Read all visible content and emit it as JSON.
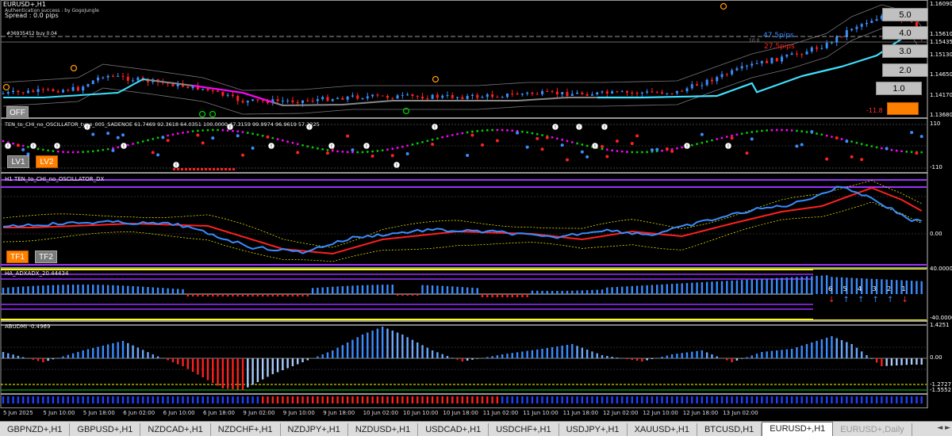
{
  "header": {
    "symbol": "EURUSD+,H1",
    "auth": "Authentication success : by GogoJungle",
    "spread": "Spread : 0.0 pips",
    "order": "#36935452 buy 0.04"
  },
  "main_panel": {
    "pips_blue": "47.5pips",
    "pips_red": "27.5pips",
    "level_small": "10.0",
    "pl_text": "-11.8",
    "right_values": [
      "1.16090",
      "1.15610",
      "1.15435",
      "1.15130",
      "1.14650",
      "1.14170",
      "1.13680"
    ],
    "off_label": "OFF"
  },
  "buttons": {
    "b50": "5.0",
    "b40": "4.0",
    "b30": "3.0",
    "b20": "2.0",
    "b10": "1.0"
  },
  "osc_panel": {
    "title": "TEN_to_CHI_no_OSCILLATOR_type_005_SADENOE 61.7469 92.3618 64.0351 100.0000 47.3159 99.9974 96.9619 57.2225",
    "top_value": "110",
    "bottom_value": "-110",
    "lv1": "LV1",
    "lv2": "LV2",
    "marker_glyph": "!"
  },
  "dx_panel": {
    "title": "H1 TEN_to_CHI_no_OSCILLATOR_DX",
    "zero": "0.00",
    "tf1": "TF1",
    "tf2": "TF2"
  },
  "adx_panel": {
    "title": "HA_ADXADX_20.44434",
    "top_value": "40.0000",
    "bottom_value": "-40.0000",
    "tf_numbers": [
      "6",
      "5",
      "4",
      "3",
      "2",
      "1"
    ],
    "arrows": [
      {
        "glyph": "↓",
        "color": "#ff3030"
      },
      {
        "glyph": "↑",
        "color": "#3a8cff"
      },
      {
        "glyph": "↑",
        "color": "#3a8cff"
      },
      {
        "glyph": "↑",
        "color": "#3a8cff"
      },
      {
        "glyph": "↑",
        "color": "#3a8cff"
      },
      {
        "glyph": "↓",
        "color": "#ff3030"
      }
    ]
  },
  "abudmi_panel": {
    "title": "ABUDMI -0.4969",
    "top_value": "1.4251",
    "zero": "0.00",
    "low1": "-1.2727",
    "low2": "-1.5552"
  },
  "x_axis": [
    "5 Jun 2025",
    "5 Jun 10:00",
    "5 Jun 18:00",
    "6 Jun 02:00",
    "6 Jun 10:00",
    "6 Jun 18:00",
    "9 Jun 02:00",
    "9 Jun 10:00",
    "9 Jun 18:00",
    "10 Jun 02:00",
    "10 Jun 10:00",
    "10 Jun 18:00",
    "11 Jun 02:00",
    "11 Jun 10:00",
    "11 Jun 18:00",
    "12 Jun 02:00",
    "12 Jun 10:00",
    "12 Jun 18:00",
    "13 Jun 02:00"
  ],
  "tabs": [
    "GBPNZD+,H1",
    "GBPUSD+,H1",
    "NZDCAD+,H1",
    "NZDCHF+,H1",
    "NZDJPY+,H1",
    "NZDUSD+,H1",
    "USDCAD+,H1",
    "USDCHF+,H1",
    "USDJPY+,H1",
    "XAUUSD+,H1",
    "BTCUSD,H1",
    "EURUSD+,H1",
    "EURUSD+,Daily"
  ],
  "tab_nav": "◄ ►",
  "colors": {
    "bull": "#3a8cff",
    "bear": "#ff2020",
    "cyan": "#40e0ff",
    "magenta": "#ff00ff",
    "purple": "#9b30ff",
    "yellow": "#ffff00",
    "orange": "#ff7f00",
    "green": "#00cc00"
  }
}
